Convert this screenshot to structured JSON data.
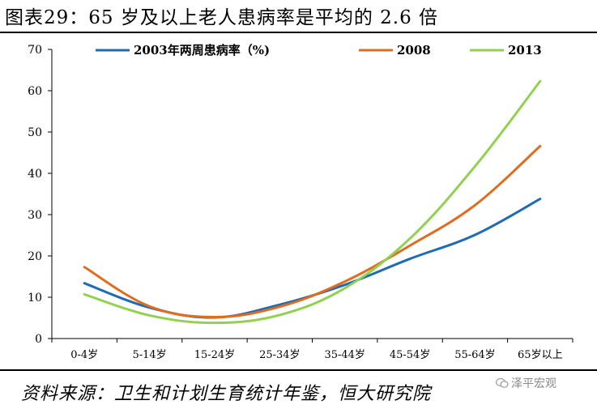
{
  "header": {
    "title": "图表29：65 岁及以上老人患病率是平均的 2.6 倍"
  },
  "chart_data": {
    "type": "line",
    "title": "",
    "xlabel": "",
    "ylabel": "",
    "ylim": [
      0,
      70
    ],
    "yticks": [
      0,
      10,
      20,
      30,
      40,
      50,
      60,
      70
    ],
    "grid": false,
    "legend_position": "top",
    "categories": [
      "0-4岁",
      "5-14岁",
      "15-24岁",
      "25-34岁",
      "35-44岁",
      "45-54岁",
      "55-64岁",
      "65岁以上"
    ],
    "series": [
      {
        "name": "2003年两周患病率（%)",
        "color": "#1f6bb5",
        "values": [
          13.4,
          7.5,
          5.1,
          8.2,
          13.0,
          19.3,
          25.1,
          33.8
        ]
      },
      {
        "name": "2008",
        "color": "#e06c20",
        "values": [
          17.3,
          7.8,
          5.2,
          7.7,
          13.8,
          22.5,
          32.3,
          46.6
        ]
      },
      {
        "name": "2013",
        "color": "#92d050",
        "values": [
          10.7,
          5.6,
          3.8,
          5.7,
          12.2,
          24.2,
          41.7,
          62.3
        ]
      }
    ]
  },
  "footer": {
    "source": "资料来源：卫生和计划生育统计年鉴，恒大研究院",
    "watermark": "泽平宏观",
    "watermark_icon": "wechat-icon"
  }
}
